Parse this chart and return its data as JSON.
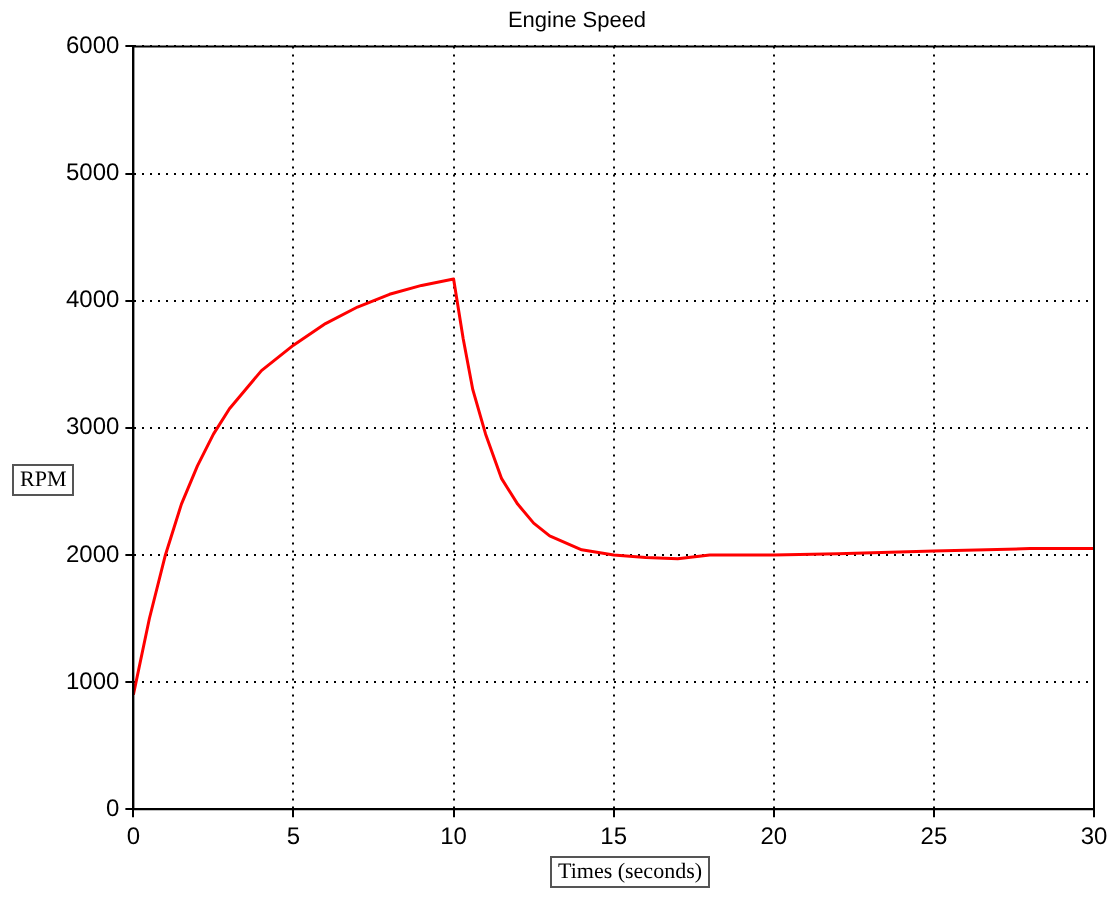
{
  "chart_data": {
    "type": "line",
    "title": "Engine Speed",
    "xlabel": "Times (seconds)",
    "ylabel": "RPM",
    "x": [
      0,
      0.5,
      1,
      1.5,
      2,
      2.5,
      3,
      4,
      5,
      6,
      7,
      8,
      9,
      10,
      10.3,
      10.6,
      11,
      11.5,
      12,
      12.5,
      13,
      14,
      15,
      16,
      17,
      18,
      20,
      22,
      25,
      28,
      30
    ],
    "series": [
      {
        "color": "#ff0000",
        "values": [
          900,
          1500,
          2000,
          2400,
          2700,
          2950,
          3150,
          3450,
          3650,
          3820,
          3950,
          4050,
          4120,
          4170,
          3700,
          3300,
          2950,
          2600,
          2400,
          2250,
          2150,
          2040,
          2000,
          1980,
          1970,
          2000,
          2000,
          2010,
          2030,
          2050,
          2050
        ]
      }
    ],
    "xlim": [
      0,
      30
    ],
    "xticks": [
      0,
      5,
      10,
      15,
      20,
      25,
      30
    ],
    "ylim": [
      0,
      6000
    ],
    "yticks": [
      0,
      1000,
      2000,
      3000,
      4000,
      5000,
      6000
    ],
    "grid": true,
    "legend": false,
    "marker": "none",
    "line_style": "solid"
  }
}
